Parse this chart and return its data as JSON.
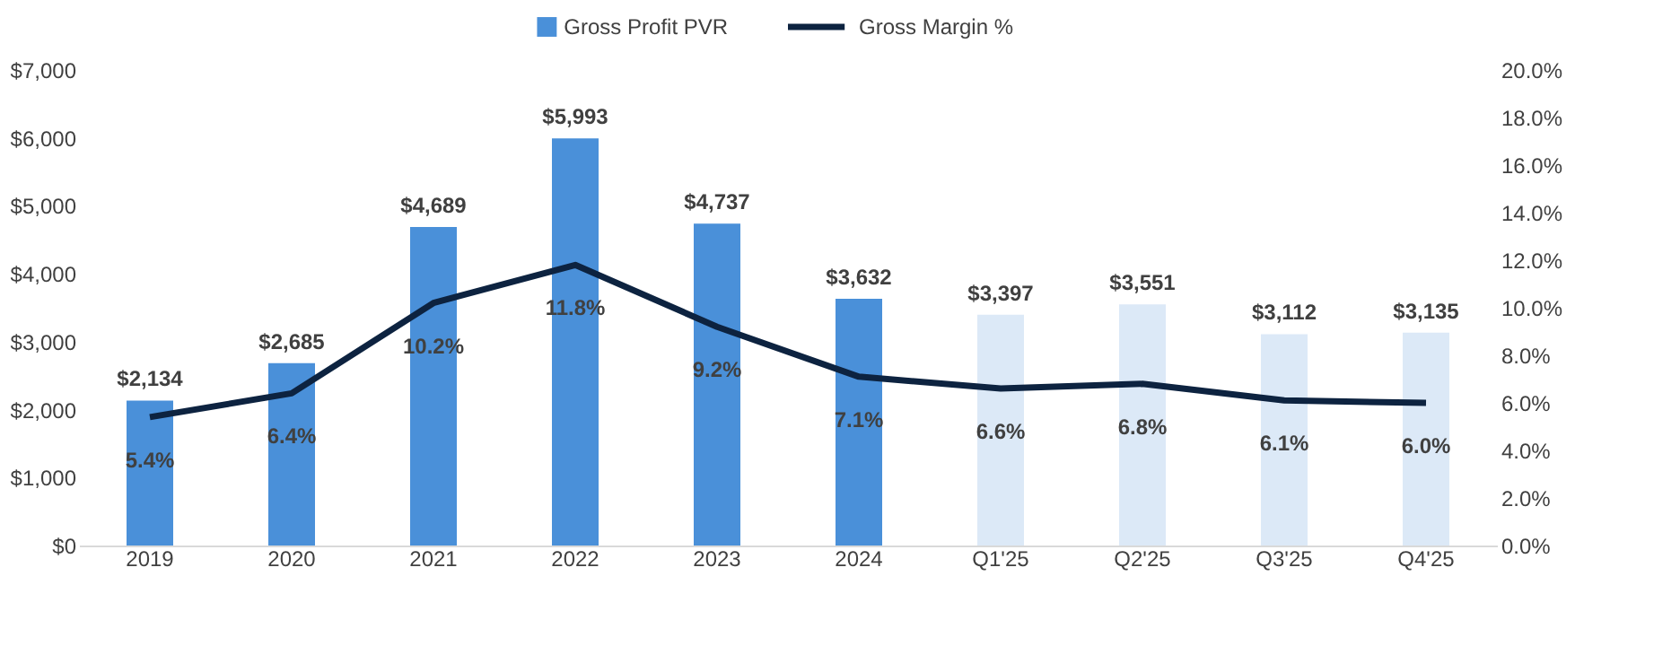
{
  "chart_data": {
    "type": "bar",
    "categories": [
      "2019",
      "2020",
      "2021",
      "2022",
      "2023",
      "2024",
      "Q1'25",
      "Q2'25",
      "Q3'25",
      "Q4'25"
    ],
    "series": [
      {
        "name": "Gross Profit PVR",
        "color": "#4a90d9",
        "colors": [
          "#4a90d9",
          "#4a90d9",
          "#4a90d9",
          "#4a90d9",
          "#4a90d9",
          "#4a90d9",
          "#dce9f7",
          "#dce9f7",
          "#dce9f7",
          "#dce9f7"
        ],
        "values": [
          2134,
          2685,
          4689,
          5993,
          4737,
          3632,
          3397,
          3551,
          3112,
          3135
        ],
        "value_labels": [
          "$2,134",
          "$2,685",
          "$4,689",
          "$5,993",
          "$4,737",
          "$3,632",
          "$3,397",
          "$3,551",
          "$3,112",
          "$3,135"
        ]
      },
      {
        "name": "Gross Margin %",
        "type": "line",
        "axis": "y2",
        "color": "#0d2340",
        "values": [
          5.4,
          6.4,
          10.2,
          11.8,
          9.2,
          7.1,
          6.6,
          6.8,
          6.1,
          6.0
        ],
        "value_labels": [
          "5.4%",
          "6.4%",
          "10.2%",
          "11.8%",
          "9.2%",
          "7.1%",
          "6.6%",
          "6.8%",
          "6.1%",
          "6.0%"
        ]
      }
    ],
    "ylim": [
      0,
      7000
    ],
    "yticks": [
      {
        "value": 0,
        "label": "$0"
      },
      {
        "value": 1000,
        "label": "$1,000"
      },
      {
        "value": 2000,
        "label": "$2,000"
      },
      {
        "value": 3000,
        "label": "$3,000"
      },
      {
        "value": 4000,
        "label": "$4,000"
      },
      {
        "value": 5000,
        "label": "$5,000"
      },
      {
        "value": 6000,
        "label": "$6,000"
      },
      {
        "value": 7000,
        "label": "$7,000"
      }
    ],
    "y2lim": [
      0,
      20
    ],
    "y2ticks": [
      {
        "value": 0,
        "label": "0.0%"
      },
      {
        "value": 2,
        "label": "2.0%"
      },
      {
        "value": 4,
        "label": "4.0%"
      },
      {
        "value": 6,
        "label": "6.0%"
      },
      {
        "value": 8,
        "label": "8.0%"
      },
      {
        "value": 10,
        "label": "10.0%"
      },
      {
        "value": 12,
        "label": "12.0%"
      },
      {
        "value": 14,
        "label": "14.0%"
      },
      {
        "value": 16,
        "label": "16.0%"
      },
      {
        "value": 18,
        "label": "18.0%"
      },
      {
        "value": 20,
        "label": "20.0%"
      }
    ],
    "legend": "top",
    "grid": false,
    "marker": "none",
    "line_style": "solid"
  }
}
